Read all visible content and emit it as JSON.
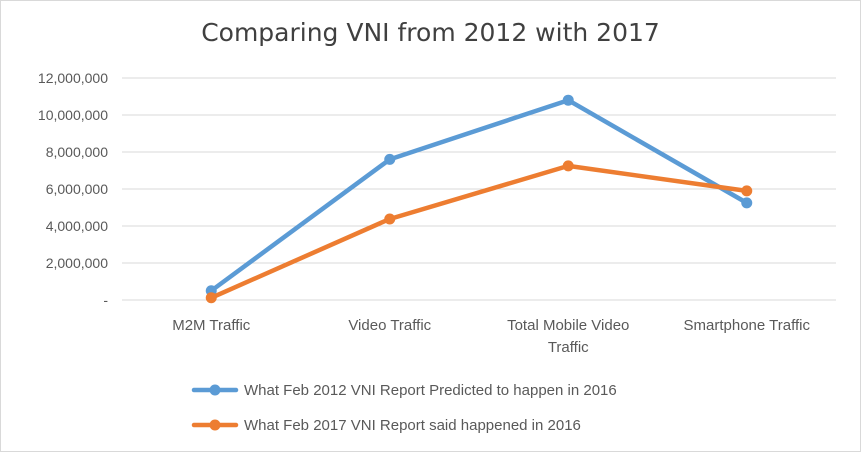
{
  "chart_data": {
    "type": "line",
    "title": "Comparing VNI from 2012 with 2017",
    "categories": [
      [
        "M2M Traffic"
      ],
      [
        "Video Traffic"
      ],
      [
        "Total Mobile Video",
        "Traffic"
      ],
      [
        "Smartphone Traffic"
      ]
    ],
    "series": [
      {
        "name": "What Feb 2012 VNI Report Predicted to happen in 2016",
        "color": "#5b9bd5",
        "values": [
          500000,
          7600000,
          10800000,
          5250000
        ]
      },
      {
        "name": "What Feb 2017 VNI Report said happened in 2016",
        "color": "#ed7d31",
        "values": [
          120000,
          4380000,
          7250000,
          5900000
        ]
      }
    ],
    "y_ticks": [
      0,
      2000000,
      4000000,
      6000000,
      8000000,
      10000000,
      12000000
    ],
    "y_tick_labels": [
      "-",
      "2,000,000",
      "4,000,000",
      "6,000,000",
      "8,000,000",
      "10,000,000",
      "12,000,000"
    ],
    "ylim": [
      0,
      12000000
    ],
    "grid": true,
    "legend_position": "bottom"
  }
}
